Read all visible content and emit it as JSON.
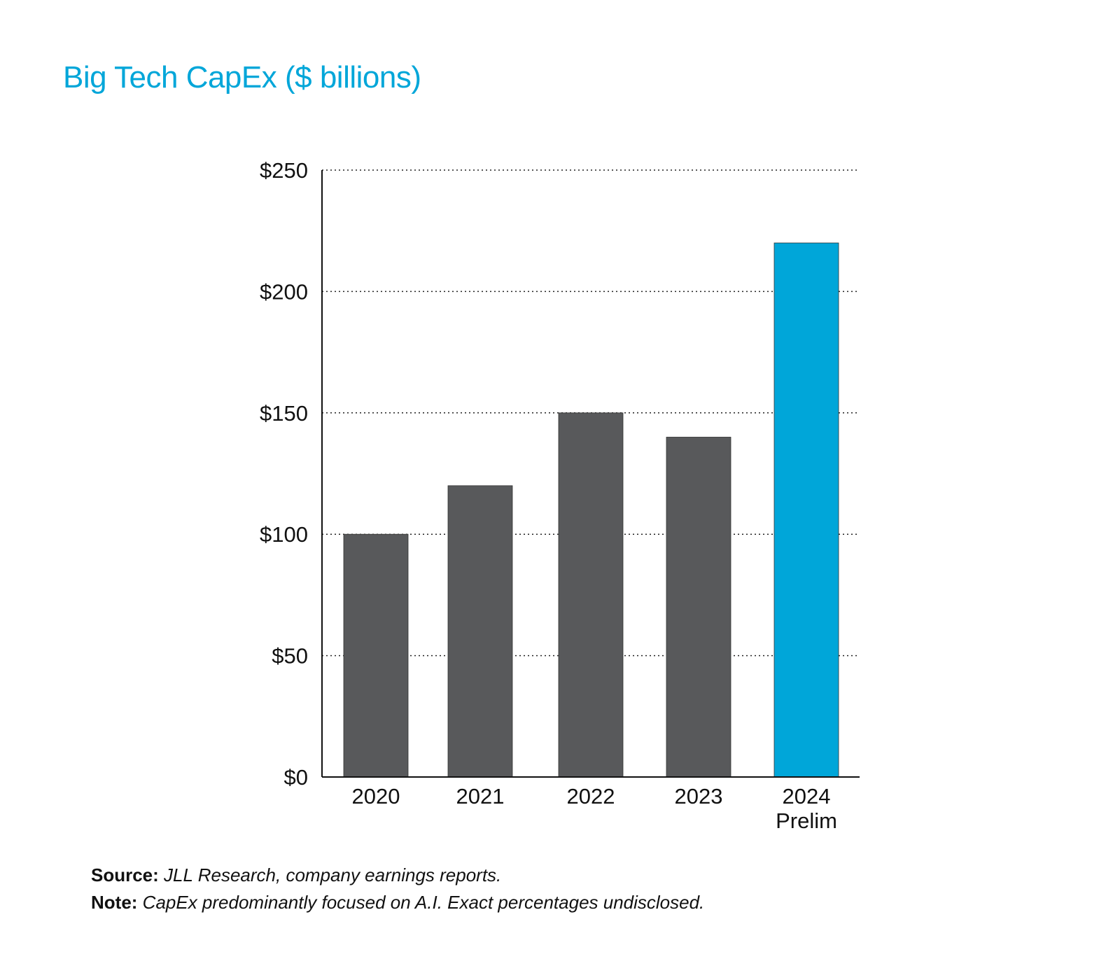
{
  "title": "Big Tech CapEx ($ billions)",
  "chart_data": {
    "type": "bar",
    "title": "Big Tech CapEx ($ billions)",
    "categories": [
      "2020",
      "2021",
      "2022",
      "2023",
      "2024\nPrelim"
    ],
    "values": [
      100,
      120,
      150,
      140,
      220
    ],
    "colors": [
      "#58595b",
      "#58595b",
      "#58595b",
      "#58595b",
      "#00a6d9"
    ],
    "ylim": [
      0,
      250
    ],
    "yticks": [
      0,
      50,
      100,
      150,
      200,
      250
    ],
    "ytick_labels": [
      "$0",
      "$50",
      "$100",
      "$150",
      "$200",
      "$250"
    ],
    "grid": "horizontal dotted",
    "xlabel": "",
    "ylabel": ""
  },
  "footer": {
    "source_label": "Source:",
    "source_text": "JLL Research, company earnings reports.",
    "note_label": "Note:",
    "note_text": "CapEx predominantly focused on A.I. Exact percentages undisclosed."
  }
}
